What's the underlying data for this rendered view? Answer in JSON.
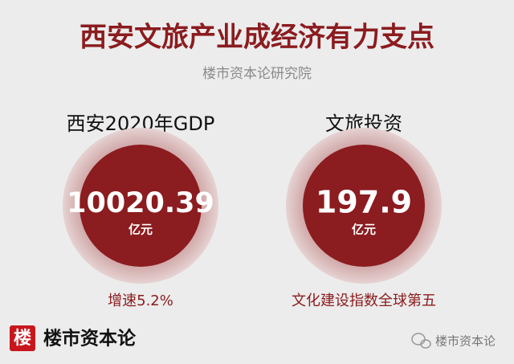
{
  "header": {
    "title": "西安文旅产业成经济有力支点",
    "subtitle": "楼市资本论研究院"
  },
  "items": [
    {
      "label": "西安2020年GDP",
      "value": "10020.39",
      "unit": "亿元",
      "note": "增速5.2%"
    },
    {
      "label": "文旅投资",
      "value": "197.9",
      "unit": "亿元",
      "note": "文化建设指数全球第五"
    }
  ],
  "footer": {
    "logo": "楼",
    "brand": "楼市资本论",
    "watermark": "楼市资本论"
  }
}
